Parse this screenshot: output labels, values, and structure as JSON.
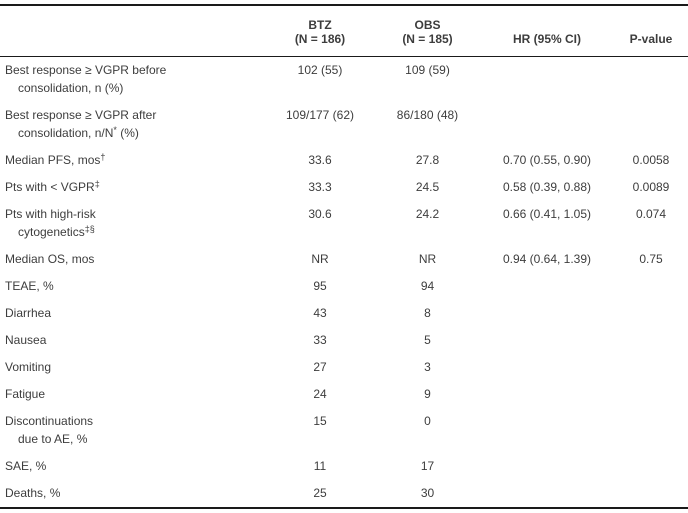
{
  "colors": {
    "text": "#3d3d3d",
    "border": "#1a1a1a",
    "background": "#ffffff"
  },
  "table": {
    "columns": [
      {
        "line1": "BTZ",
        "line2": "(N = 186)"
      },
      {
        "line1": "OBS",
        "line2": "(N = 185)"
      },
      {
        "line1": "HR (95% CI)",
        "line2": ""
      },
      {
        "line1": "P-value",
        "line2": ""
      }
    ],
    "rows": [
      {
        "line1": "Best response ≥ VGPR before",
        "line1_sup": "",
        "line2_pre": "consolidation, n (%)",
        "line2_sup": "",
        "line2_post": "",
        "btz": "102 (55)",
        "obs": "109 (59)",
        "hr": "",
        "p": ""
      },
      {
        "line1": "Best response ≥ VGPR after",
        "line1_sup": "",
        "line2_pre": "consolidation, n/N",
        "line2_sup": "*",
        "line2_post": " (%)",
        "btz": "109/177 (62)",
        "obs": "86/180 (48)",
        "hr": "",
        "p": ""
      },
      {
        "line1": "Median PFS, mos",
        "line1_sup": "†",
        "line2_pre": "",
        "line2_sup": "",
        "line2_post": "",
        "btz": "33.6",
        "obs": "27.8",
        "hr": "0.70 (0.55, 0.90)",
        "p": "0.0058"
      },
      {
        "line1": "Pts with < VGPR",
        "line1_sup": "‡",
        "line2_pre": "",
        "line2_sup": "",
        "line2_post": "",
        "btz": "33.3",
        "obs": "24.5",
        "hr": "0.58 (0.39, 0.88)",
        "p": "0.0089"
      },
      {
        "line1": "Pts with high-risk",
        "line1_sup": "",
        "line2_pre": "cytogenetics",
        "line2_sup": "‡§",
        "line2_post": "",
        "btz": "30.6",
        "obs": "24.2",
        "hr": "0.66 (0.41, 1.05)",
        "p": "0.074"
      },
      {
        "line1": "Median OS, mos",
        "line1_sup": "",
        "line2_pre": "",
        "line2_sup": "",
        "line2_post": "",
        "btz": "NR",
        "obs": "NR",
        "hr": "0.94 (0.64, 1.39)",
        "p": "0.75"
      },
      {
        "line1": "TEAE, %",
        "line1_sup": "",
        "line2_pre": "",
        "line2_sup": "",
        "line2_post": "",
        "btz": "95",
        "obs": "94",
        "hr": "",
        "p": ""
      },
      {
        "line1": "Diarrhea",
        "line1_sup": "",
        "line2_pre": "",
        "line2_sup": "",
        "line2_post": "",
        "btz": "43",
        "obs": "8",
        "hr": "",
        "p": ""
      },
      {
        "line1": "Nausea",
        "line1_sup": "",
        "line2_pre": "",
        "line2_sup": "",
        "line2_post": "",
        "btz": "33",
        "obs": "5",
        "hr": "",
        "p": ""
      },
      {
        "line1": "Vomiting",
        "line1_sup": "",
        "line2_pre": "",
        "line2_sup": "",
        "line2_post": "",
        "btz": "27",
        "obs": "3",
        "hr": "",
        "p": ""
      },
      {
        "line1": "Fatigue",
        "line1_sup": "",
        "line2_pre": "",
        "line2_sup": "",
        "line2_post": "",
        "btz": "24",
        "obs": "9",
        "hr": "",
        "p": ""
      },
      {
        "line1": "Discontinuations",
        "line1_sup": "",
        "line2_pre": "due to AE, %",
        "line2_sup": "",
        "line2_post": "",
        "btz": "15",
        "obs": "0",
        "hr": "",
        "p": ""
      },
      {
        "line1": "SAE, %",
        "line1_sup": "",
        "line2_pre": "",
        "line2_sup": "",
        "line2_post": "",
        "btz": "11",
        "obs": "17",
        "hr": "",
        "p": ""
      },
      {
        "line1": "Deaths, %",
        "line1_sup": "",
        "line2_pre": "",
        "line2_sup": "",
        "line2_post": "",
        "btz": "25",
        "obs": "30",
        "hr": "",
        "p": ""
      }
    ]
  }
}
